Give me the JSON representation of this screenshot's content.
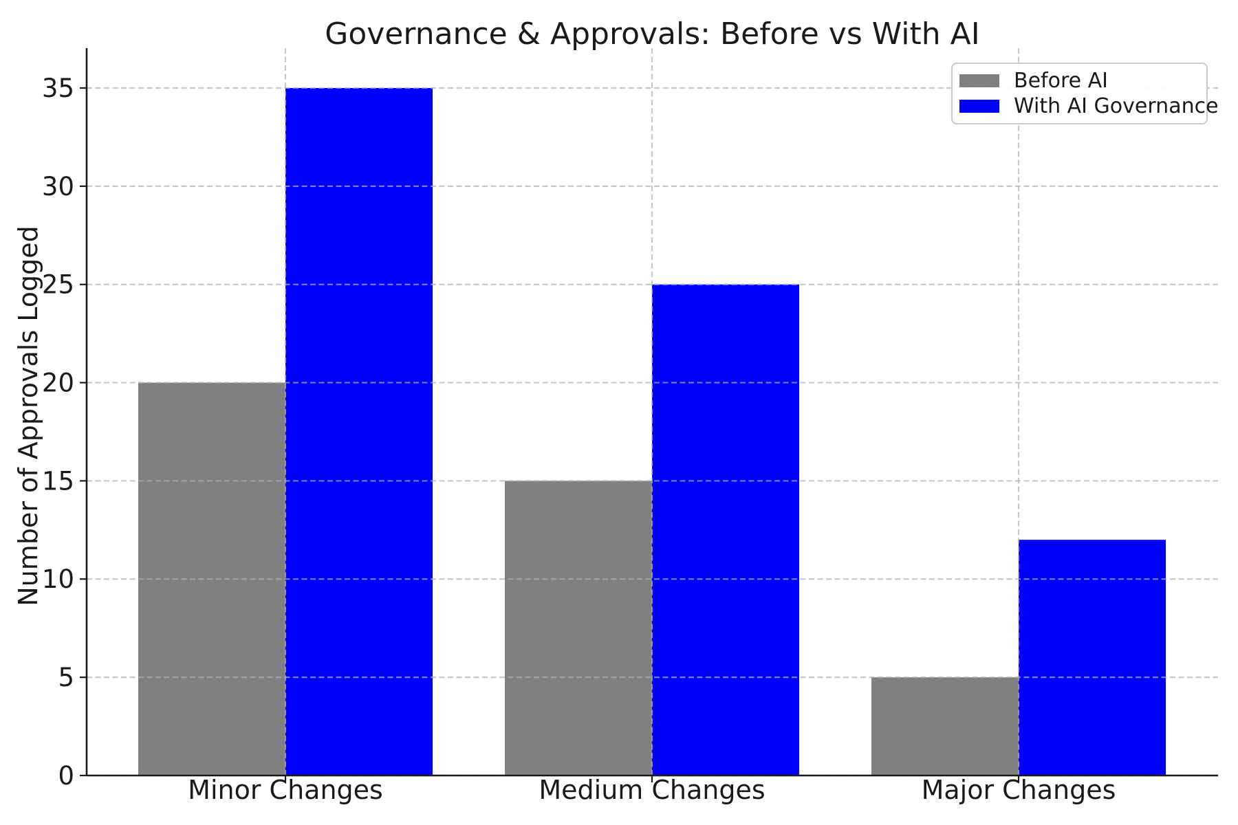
{
  "chart_data": {
    "type": "bar",
    "title": "Governance & Approvals: Before vs With AI",
    "ylabel": "Number of Approvals Logged",
    "xlabel": "",
    "categories": [
      "Minor Changes",
      "Medium Changes",
      "Major Changes"
    ],
    "series": [
      {
        "name": "Before AI",
        "color": "#808080",
        "values": [
          20,
          15,
          5
        ]
      },
      {
        "name": "With AI Governance",
        "color": "#0000ff",
        "values": [
          35,
          25,
          12
        ]
      }
    ],
    "yticks": [
      0,
      5,
      10,
      15,
      20,
      25,
      30,
      35
    ],
    "ylim": [
      0,
      37
    ],
    "grid": "dashed gridlines on both axes, drawn above bars",
    "legend_position": "upper right"
  }
}
